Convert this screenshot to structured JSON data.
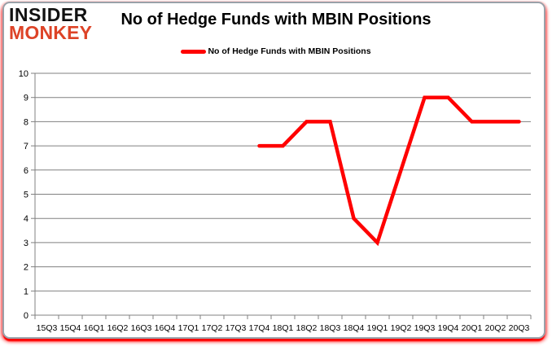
{
  "logo": {
    "line1": "INSIDER",
    "line2": "MONKEY"
  },
  "header": {
    "title": "No of Hedge Funds with MBIN Positions"
  },
  "legend": {
    "label": "No of Hedge Funds with MBIN Positions"
  },
  "colors": {
    "line": "#FF0000",
    "grid": "#808080",
    "axis": "#808080",
    "text": "#000000",
    "logo_black": "#111111",
    "logo_red": "#DD4327",
    "frame_border": "#9AA1A9",
    "frame_shadow": "#FF0000",
    "background": "#FFFFFF"
  },
  "chart_data": {
    "type": "line",
    "title": "No of Hedge Funds with MBIN Positions",
    "categories": [
      "15Q3",
      "15Q4",
      "16Q1",
      "16Q2",
      "16Q3",
      "16Q4",
      "17Q1",
      "17Q2",
      "17Q3",
      "17Q4",
      "18Q1",
      "18Q2",
      "18Q3",
      "18Q4",
      "19Q1",
      "19Q2",
      "19Q3",
      "19Q4",
      "20Q1",
      "20Q2",
      "20Q3"
    ],
    "series": [
      {
        "name": "No of Hedge Funds with MBIN Positions",
        "color": "#FF0000",
        "values": [
          null,
          null,
          null,
          null,
          null,
          null,
          null,
          null,
          null,
          7,
          7,
          8,
          8,
          4,
          3,
          6,
          9,
          9,
          8,
          8,
          8
        ]
      }
    ],
    "xlabel": "",
    "ylabel": "",
    "ylim": [
      0,
      10
    ],
    "yticks": [
      0,
      1,
      2,
      3,
      4,
      5,
      6,
      7,
      8,
      9,
      10
    ],
    "grid": "horizontal",
    "legend_position": "top-center"
  }
}
